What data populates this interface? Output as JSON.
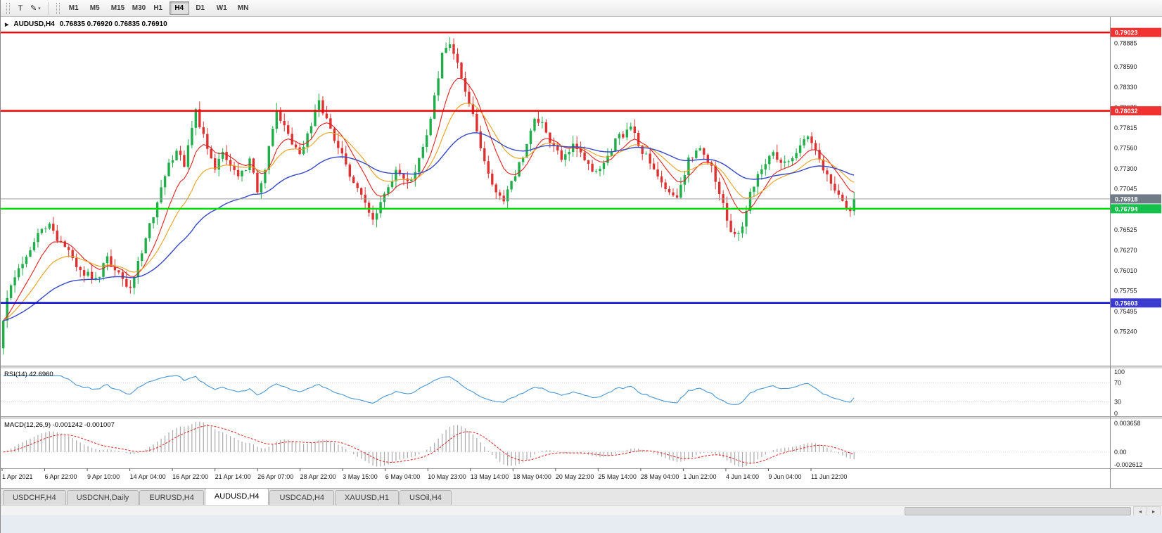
{
  "toolbar": {
    "tool_t_label": "T",
    "draw_icon": "✎",
    "caret": "▾",
    "timeframes": [
      "M1",
      "M5",
      "M15",
      "M30",
      "H1",
      "H4",
      "D1",
      "W1",
      "MN"
    ],
    "active_timeframe": "H4"
  },
  "chart": {
    "pointer_icon": "▶",
    "symbol_title": "AUDUSD,H4",
    "ohlc": "0.76835 0.76920 0.76835 0.76910",
    "price_axis_labels": [
      "0.78885",
      "0.78590",
      "0.78330",
      "0.78075",
      "0.77815",
      "0.77560",
      "0.77300",
      "0.77045",
      "0.76525",
      "0.76270",
      "0.76010",
      "0.75755",
      "0.75495",
      "0.75240"
    ],
    "hlines": [
      {
        "value": 0.79023,
        "label": "0.79023",
        "color": "#ff0000",
        "badge": "#f23131"
      },
      {
        "value": 0.78032,
        "label": "0.78032",
        "color": "#ff0000",
        "badge": "#f23131"
      },
      {
        "value": 0.76794,
        "label": "0.76794",
        "color": "#00dd00",
        "badge": "#12c04a"
      },
      {
        "value": 0.75603,
        "label": "0.75603",
        "color": "#0000c8",
        "badge": "#3b3bd0"
      }
    ],
    "current_price": {
      "value": 0.76918,
      "label": "0.76918",
      "badge": "#6f7b87"
    },
    "time_axis_labels": [
      "1 Apr 2021",
      "6 Apr 22:00",
      "9 Apr 10:00",
      "14 Apr 04:00",
      "16 Apr 22:00",
      "21 Apr 14:00",
      "26 Apr 07:00",
      "28 Apr 22:00",
      "3 May 15:00",
      "6 May 04:00",
      "10 May 23:00",
      "13 May 14:00",
      "18 May 04:00",
      "20 May 22:00",
      "25 May 14:00",
      "28 May 04:00",
      "1 Jun 22:00",
      "4 Jun 14:00",
      "9 Jun 04:00",
      "11 Jun 22:00"
    ]
  },
  "rsi": {
    "label": "RSI(14) 42.6960",
    "period": 14,
    "levels": [
      "100",
      "70",
      "30",
      "0"
    ],
    "line_color": "#4a96d2"
  },
  "macd": {
    "label": "MACD(12,26,9) -0.001242 -0.001007",
    "fast": 12,
    "slow": 26,
    "signal": 9,
    "scale_labels": {
      "top": "0.003658",
      "mid": "0.00",
      "bottom": "-0.002612"
    },
    "hist_color": "#aaaaaa",
    "signal_color": "#e02020"
  },
  "tabs": {
    "items": [
      "USDCHF,H4",
      "USDCNH,Daily",
      "EURUSD,H4",
      "AUDUSD,H4",
      "USDCAD,H4",
      "XAUUSD,H1",
      "USOil,H4"
    ],
    "active": "AUDUSD,H4"
  },
  "scrollbar": {
    "left_arrow": "◂",
    "right_arrow": "▸"
  },
  "chart_data": {
    "type": "candlestick",
    "symbol": "AUDUSD",
    "timeframe": "H4",
    "n_candles": 222,
    "price_top": 0.7922,
    "price_bottom": 0.7481,
    "jitter": 0.0011,
    "wick": 0.001,
    "up_color": "#1fae4a",
    "down_color": "#de3232",
    "close_waypoints": [
      [
        0,
        0.7538
      ],
      [
        2,
        0.7585
      ],
      [
        4,
        0.7604
      ],
      [
        8,
        0.7641
      ],
      [
        12,
        0.7656
      ],
      [
        16,
        0.7629
      ],
      [
        20,
        0.7601
      ],
      [
        24,
        0.7589
      ],
      [
        27,
        0.7617
      ],
      [
        30,
        0.7599
      ],
      [
        33,
        0.7579
      ],
      [
        36,
        0.7626
      ],
      [
        39,
        0.7674
      ],
      [
        42,
        0.7723
      ],
      [
        45,
        0.7753
      ],
      [
        47,
        0.7731
      ],
      [
        50,
        0.7801
      ],
      [
        52,
        0.7769
      ],
      [
        55,
        0.7727
      ],
      [
        57,
        0.7749
      ],
      [
        61,
        0.7718
      ],
      [
        64,
        0.7739
      ],
      [
        66,
        0.7701
      ],
      [
        68,
        0.7727
      ],
      [
        71,
        0.7808
      ],
      [
        74,
        0.7769
      ],
      [
        77,
        0.7749
      ],
      [
        82,
        0.7815
      ],
      [
        85,
        0.7779
      ],
      [
        88,
        0.7745
      ],
      [
        91,
        0.7709
      ],
      [
        94,
        0.7685
      ],
      [
        96,
        0.7667
      ],
      [
        99,
        0.7701
      ],
      [
        102,
        0.7723
      ],
      [
        105,
        0.7709
      ],
      [
        107,
        0.7729
      ],
      [
        110,
        0.7769
      ],
      [
        112,
        0.7821
      ],
      [
        114,
        0.7876
      ],
      [
        116,
        0.7887
      ],
      [
        118,
        0.7859
      ],
      [
        120,
        0.7831
      ],
      [
        122,
        0.7801
      ],
      [
        124,
        0.7756
      ],
      [
        126,
        0.7721
      ],
      [
        128,
        0.7699
      ],
      [
        130,
        0.7688
      ],
      [
        133,
        0.7725
      ],
      [
        136,
        0.7761
      ],
      [
        138,
        0.7796
      ],
      [
        140,
        0.7786
      ],
      [
        142,
        0.7761
      ],
      [
        145,
        0.7744
      ],
      [
        148,
        0.7763
      ],
      [
        151,
        0.7741
      ],
      [
        154,
        0.7722
      ],
      [
        157,
        0.7749
      ],
      [
        160,
        0.7771
      ],
      [
        163,
        0.7779
      ],
      [
        166,
        0.7753
      ],
      [
        169,
        0.7726
      ],
      [
        172,
        0.7706
      ],
      [
        175,
        0.7697
      ],
      [
        178,
        0.7741
      ],
      [
        181,
        0.7756
      ],
      [
        184,
        0.7731
      ],
      [
        187,
        0.7681
      ],
      [
        189,
        0.7649
      ],
      [
        191,
        0.7643
      ],
      [
        194,
        0.7701
      ],
      [
        197,
        0.7731
      ],
      [
        200,
        0.7746
      ],
      [
        203,
        0.7736
      ],
      [
        206,
        0.7753
      ],
      [
        209,
        0.7769
      ],
      [
        212,
        0.7741
      ],
      [
        215,
        0.7713
      ],
      [
        218,
        0.7691
      ],
      [
        220,
        0.7673
      ],
      [
        221,
        0.76918
      ]
    ],
    "moving_averages": [
      {
        "period": 9,
        "color": "#e02020",
        "width": 1.1
      },
      {
        "period": 18,
        "color": "#e8a01e",
        "width": 1.1
      },
      {
        "period": 45,
        "color": "#3448c8",
        "width": 1.4
      }
    ]
  }
}
